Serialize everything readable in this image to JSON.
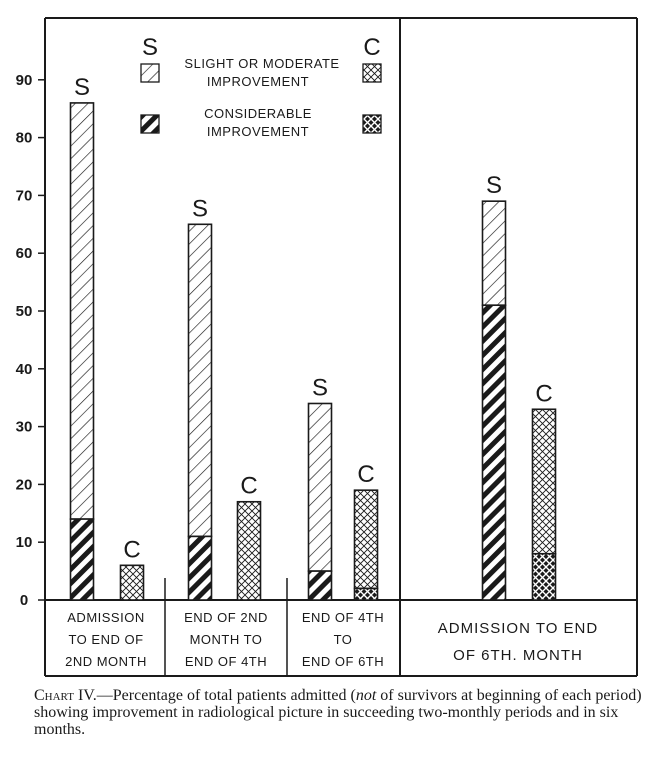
{
  "chart_data": {
    "type": "bar",
    "stacked": true,
    "yticks": [
      "0",
      "10",
      "20",
      "30",
      "40",
      "50",
      "60",
      "70",
      "80",
      "90"
    ],
    "ylim": [
      0,
      90
    ],
    "legend": {
      "header_s": "S",
      "header_c": "C",
      "items": [
        {
          "key": "slight",
          "lines": [
            "SLIGHT OR MODERATE",
            "IMPROVEMENT"
          ]
        },
        {
          "key": "considerable",
          "lines": [
            "CONSIDERABLE",
            "IMPROVEMENT"
          ]
        }
      ]
    },
    "groups": [
      {
        "label_lines": [
          "ADMISSION",
          "TO END OF",
          "2ND MONTH"
        ],
        "bars": [
          {
            "letter": "S",
            "considerable": 14,
            "slight": 72,
            "total": 86
          },
          {
            "letter": "C",
            "considerable": 0,
            "slight": 6,
            "total": 6
          }
        ]
      },
      {
        "label_lines": [
          "END OF 2ND",
          "MONTH TO",
          "END OF 4TH"
        ],
        "bars": [
          {
            "letter": "S",
            "considerable": 11,
            "slight": 54,
            "total": 65
          },
          {
            "letter": "C",
            "considerable": 0,
            "slight": 17,
            "total": 17
          }
        ]
      },
      {
        "label_lines": [
          "END OF 4TH",
          "TO",
          "END OF 6TH"
        ],
        "bars": [
          {
            "letter": "S",
            "considerable": 5,
            "slight": 29,
            "total": 34
          },
          {
            "letter": "C",
            "considerable": 2,
            "slight": 17,
            "total": 19
          }
        ]
      },
      {
        "label_lines": [
          "ADMISSION TO END",
          "OF 6TH. MONTH"
        ],
        "bars": [
          {
            "letter": "S",
            "considerable": 51,
            "slight": 18,
            "total": 69
          },
          {
            "letter": "C",
            "considerable": 8,
            "slight": 25,
            "total": 33
          }
        ]
      }
    ]
  },
  "caption": {
    "label": "Chart IV.",
    "text_before": "—Percentage of total patients admitted (",
    "emph": "not",
    "text_after": " of survivors at beginning of each period) showing improvement in radiological picture in succeeding two-monthly periods and in six months."
  }
}
